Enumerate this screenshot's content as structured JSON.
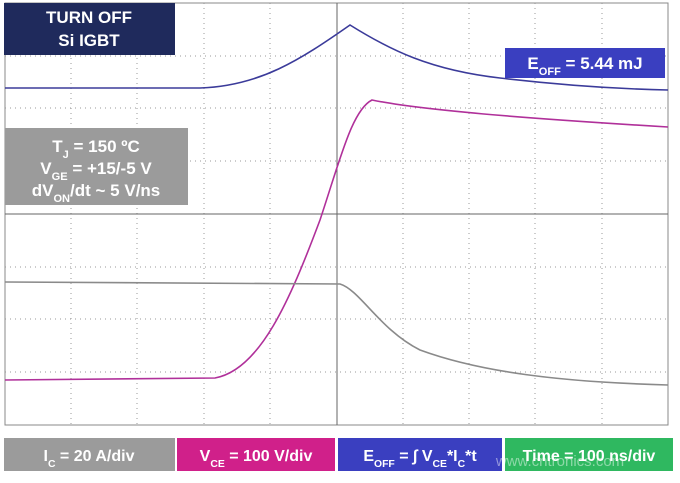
{
  "header": {
    "lines": [
      "TURN OFF",
      "Si IGBT"
    ]
  },
  "conditions": [
    [
      {
        "t": "T"
      },
      {
        "sub": "J"
      },
      {
        "t": " = 150 ºC"
      }
    ],
    [
      {
        "t": "V"
      },
      {
        "sub": "GE"
      },
      {
        "t": " = +15/-5 V"
      }
    ],
    [
      {
        "t": "dV"
      },
      {
        "sub": "ON"
      },
      {
        "t": "/dt ~ 5 V/ns"
      }
    ]
  ],
  "energy": [
    {
      "t": "E"
    },
    {
      "sub": "OFF"
    },
    {
      "t": " = 5.44 mJ"
    }
  ],
  "legend": [
    [
      {
        "t": "I"
      },
      {
        "sub": "C"
      },
      {
        "t": " = 20 A/div"
      }
    ],
    [
      {
        "t": "V"
      },
      {
        "sub": "CE"
      },
      {
        "t": " = 100 V/div"
      }
    ],
    [
      {
        "t": "E"
      },
      {
        "sub": "OFF"
      },
      {
        "t": " = ∫ V"
      },
      {
        "sub": "CE"
      },
      {
        "t": "*I"
      },
      {
        "sub": "C"
      },
      {
        "t": "*t"
      }
    ],
    [
      {
        "t": "Time = 100 ns/div"
      }
    ]
  ],
  "watermark": "www.cntronics.com"
}
